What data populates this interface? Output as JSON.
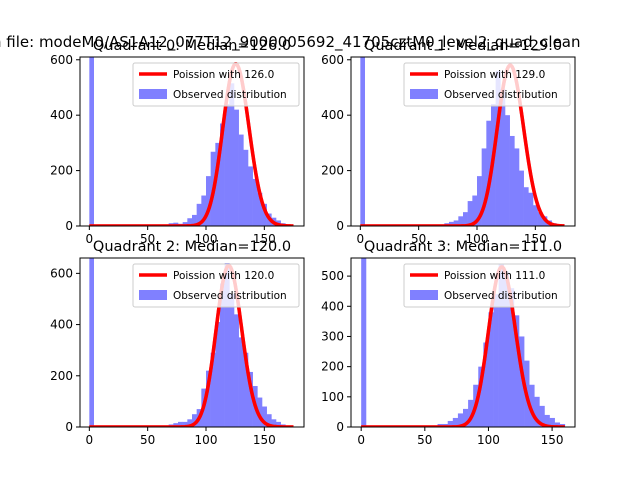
{
  "suptitle": "n file: modeM0/AS1A12_077T12_9000005692_41705cztM0_level2_quad_clean",
  "colors": {
    "poisson": "#ff0000",
    "observed": "#8080ff",
    "axis": "#000000"
  },
  "chart_data": [
    {
      "type": "bar",
      "title": "Quadrant 0: Median=126.0",
      "legend": {
        "position": "top-right",
        "entries": [
          "Poission with 126.0",
          "Observed distribution"
        ]
      },
      "xlim": [
        -8,
        184
      ],
      "ylim": [
        0,
        610
      ],
      "xticks": [
        0,
        50,
        100,
        150
      ],
      "yticks": [
        0,
        200,
        400,
        600
      ],
      "bin_width": 4,
      "zero_bin": {
        "x": 0,
        "value": 610
      },
      "observed": {
        "name": "Observed distribution",
        "x": [
          68,
          72,
          76,
          80,
          84,
          88,
          92,
          96,
          100,
          104,
          108,
          112,
          116,
          120,
          124,
          128,
          132,
          136,
          140,
          144,
          148,
          152,
          156,
          160,
          164,
          168
        ],
        "values": [
          10,
          12,
          8,
          14,
          28,
          40,
          80,
          110,
          180,
          268,
          300,
          370,
          440,
          515,
          420,
          330,
          275,
          215,
          170,
          120,
          80,
          45,
          30,
          20,
          10,
          5
        ]
      },
      "poisson": {
        "name": "Poission with 126.0",
        "mean": 126.0,
        "x_range": [
          0,
          175
        ],
        "peak": 585
      }
    },
    {
      "type": "bar",
      "title": "Quadrant 1: Median=129.0",
      "legend": {
        "position": "top-right",
        "entries": [
          "Poission with 129.0",
          "Observed distribution"
        ]
      },
      "xlim": [
        -8,
        184
      ],
      "ylim": [
        0,
        610
      ],
      "xticks": [
        0,
        50,
        100,
        150
      ],
      "yticks": [
        0,
        200,
        400,
        600
      ],
      "bin_width": 4,
      "zero_bin": {
        "x": 0,
        "value": 610
      },
      "observed": {
        "name": "Observed distribution",
        "x": [
          72,
          76,
          80,
          84,
          88,
          92,
          96,
          100,
          104,
          108,
          112,
          116,
          120,
          124,
          128,
          132,
          136,
          140,
          144,
          148,
          152,
          156,
          160,
          164,
          168
        ],
        "values": [
          10,
          15,
          20,
          35,
          50,
          90,
          110,
          180,
          280,
          380,
          440,
          560,
          495,
          400,
          325,
          280,
          200,
          140,
          120,
          75,
          50,
          35,
          20,
          10,
          5
        ]
      },
      "poisson": {
        "name": "Poission with 129.0",
        "mean": 129.0,
        "x_range": [
          0,
          175
        ],
        "peak": 580
      }
    },
    {
      "type": "bar",
      "title": "Quadrant 2: Median=120.0",
      "legend": {
        "position": "top-right",
        "entries": [
          "Poission with 120.0",
          "Observed distribution"
        ]
      },
      "xlim": [
        -8,
        184
      ],
      "ylim": [
        0,
        660
      ],
      "xticks": [
        0,
        50,
        100,
        150
      ],
      "yticks": [
        0,
        200,
        400,
        600
      ],
      "bin_width": 4,
      "zero_bin": {
        "x": 0,
        "value": 660
      },
      "observed": {
        "name": "Observed distribution",
        "x": [
          68,
          72,
          76,
          80,
          84,
          88,
          92,
          96,
          100,
          104,
          108,
          112,
          116,
          120,
          124,
          128,
          132,
          136,
          140,
          144,
          148,
          152,
          156,
          160,
          164,
          168
        ],
        "values": [
          10,
          15,
          20,
          20,
          30,
          50,
          70,
          150,
          220,
          290,
          410,
          560,
          640,
          520,
          440,
          350,
          290,
          215,
          160,
          115,
          80,
          50,
          30,
          20,
          10,
          5
        ]
      },
      "poisson": {
        "name": "Poission with 120.0",
        "mean": 120.0,
        "x_range": [
          0,
          175
        ],
        "peak": 630
      }
    },
    {
      "type": "bar",
      "title": "Quadrant 3: Median=111.0",
      "legend": {
        "position": "top-right",
        "entries": [
          "Poission with 111.0",
          "Observed distribution"
        ]
      },
      "xlim": [
        -8,
        168
      ],
      "ylim": [
        0,
        560
      ],
      "xticks": [
        0,
        50,
        100,
        150
      ],
      "yticks": [
        0,
        100,
        200,
        300,
        400,
        500
      ],
      "bin_width": 4,
      "zero_bin": {
        "x": 0,
        "value": 560
      },
      "observed": {
        "name": "Observed distribution",
        "x": [
          56,
          60,
          64,
          68,
          72,
          76,
          80,
          84,
          88,
          92,
          96,
          100,
          104,
          108,
          112,
          116,
          120,
          124,
          128,
          132,
          136,
          140,
          144,
          148,
          152,
          156
        ],
        "values": [
          5,
          10,
          10,
          20,
          30,
          45,
          60,
          90,
          140,
          200,
          280,
          380,
          440,
          540,
          515,
          460,
          370,
          300,
          220,
          140,
          100,
          70,
          40,
          30,
          15,
          10
        ]
      },
      "poisson": {
        "name": "Poission with 111.0",
        "mean": 111.0,
        "x_range": [
          0,
          160
        ],
        "peak": 530
      }
    }
  ]
}
